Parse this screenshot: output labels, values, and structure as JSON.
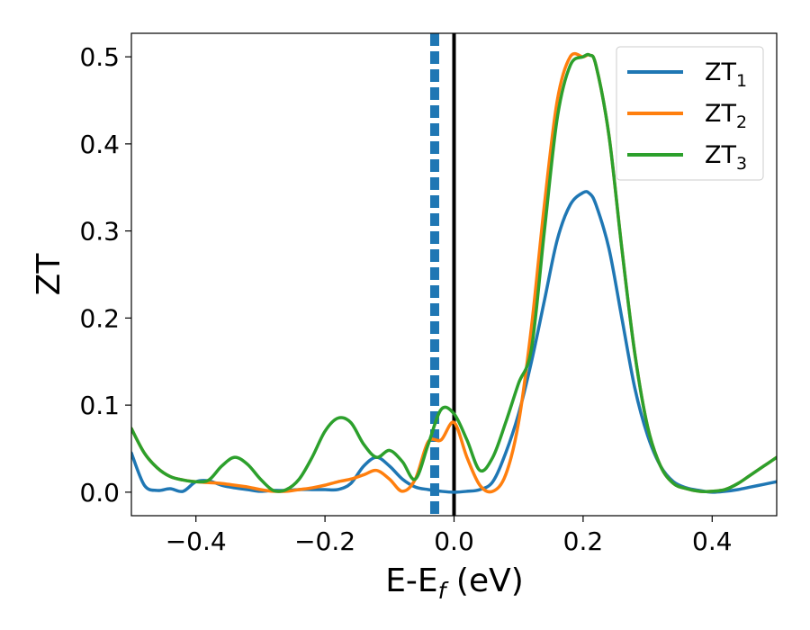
{
  "chart_data": {
    "type": "line",
    "title": "",
    "xlabel": "E-E",
    "xlabel_sub": "f",
    "xlabel_unit": " (eV)",
    "ylabel": "ZT",
    "xlim": [
      -0.5,
      0.5
    ],
    "ylim": [
      -0.027,
      0.527
    ],
    "xticks": [
      -0.4,
      -0.2,
      0.0,
      0.2,
      0.4
    ],
    "xtick_labels": [
      "−0.4",
      "−0.2",
      "0.0",
      "0.2",
      "0.4"
    ],
    "yticks": [
      0.0,
      0.1,
      0.2,
      0.3,
      0.4,
      0.5
    ],
    "ytick_labels": [
      "0.0",
      "0.1",
      "0.2",
      "0.3",
      "0.4",
      "0.5"
    ],
    "grid": false,
    "legend_position": "top-right",
    "vlines": [
      {
        "x": -0.03,
        "style": "dashed",
        "color": "#1f77b4"
      },
      {
        "x": 0.0,
        "style": "solid",
        "color": "#000000"
      }
    ],
    "series": [
      {
        "name": "ZT",
        "name_sub": "1",
        "color": "#1f77b4",
        "x": [
          -0.5,
          -0.48,
          -0.46,
          -0.44,
          -0.42,
          -0.4,
          -0.38,
          -0.36,
          -0.34,
          -0.32,
          -0.3,
          -0.28,
          -0.26,
          -0.24,
          -0.22,
          -0.2,
          -0.18,
          -0.16,
          -0.14,
          -0.12,
          -0.1,
          -0.08,
          -0.06,
          -0.04,
          -0.02,
          0.0,
          0.02,
          0.04,
          0.06,
          0.08,
          0.1,
          0.12,
          0.14,
          0.16,
          0.18,
          0.2,
          0.21,
          0.22,
          0.24,
          0.26,
          0.28,
          0.3,
          0.32,
          0.34,
          0.36,
          0.38,
          0.4,
          0.42,
          0.44,
          0.46,
          0.48,
          0.5
        ],
        "y": [
          0.045,
          0.008,
          0.002,
          0.004,
          0.001,
          0.012,
          0.013,
          0.008,
          0.005,
          0.003,
          0.001,
          0.002,
          0.002,
          0.003,
          0.003,
          0.003,
          0.003,
          0.01,
          0.03,
          0.04,
          0.03,
          0.015,
          0.006,
          0.003,
          0.001,
          0.0,
          0.001,
          0.003,
          0.012,
          0.045,
          0.09,
          0.15,
          0.22,
          0.29,
          0.33,
          0.344,
          0.343,
          0.33,
          0.28,
          0.2,
          0.12,
          0.065,
          0.03,
          0.012,
          0.005,
          0.002,
          0.0,
          0.001,
          0.003,
          0.006,
          0.009,
          0.012
        ]
      },
      {
        "name": "ZT",
        "name_sub": "2",
        "color": "#ff7f0e",
        "x": [
          -0.5,
          -0.48,
          -0.46,
          -0.44,
          -0.42,
          -0.4,
          -0.38,
          -0.36,
          -0.34,
          -0.32,
          -0.3,
          -0.28,
          -0.26,
          -0.24,
          -0.22,
          -0.2,
          -0.18,
          -0.16,
          -0.14,
          -0.12,
          -0.1,
          -0.08,
          -0.06,
          -0.04,
          -0.02,
          0.0,
          0.02,
          0.04,
          0.06,
          0.08,
          0.1,
          0.12,
          0.14,
          0.16,
          0.18,
          0.2,
          0.21,
          0.22,
          0.24,
          0.26,
          0.28,
          0.3,
          0.32,
          0.34,
          0.36,
          0.38,
          0.4,
          0.42,
          0.44,
          0.46,
          0.48,
          0.5
        ],
        "y": [
          0.073,
          0.045,
          0.028,
          0.018,
          0.014,
          0.012,
          0.011,
          0.01,
          0.008,
          0.006,
          0.003,
          0.001,
          0.001,
          0.003,
          0.005,
          0.008,
          0.012,
          0.015,
          0.02,
          0.025,
          0.015,
          0.001,
          0.015,
          0.058,
          0.06,
          0.08,
          0.04,
          0.008,
          0.001,
          0.02,
          0.08,
          0.19,
          0.33,
          0.45,
          0.5,
          0.5,
          0.502,
          0.49,
          0.41,
          0.28,
          0.16,
          0.075,
          0.03,
          0.01,
          0.004,
          0.001,
          0.001,
          0.003,
          0.01,
          0.02,
          0.03,
          0.04
        ]
      },
      {
        "name": "ZT",
        "name_sub": "3",
        "color": "#2ca02c",
        "x": [
          -0.5,
          -0.48,
          -0.46,
          -0.44,
          -0.42,
          -0.4,
          -0.38,
          -0.36,
          -0.34,
          -0.32,
          -0.3,
          -0.28,
          -0.26,
          -0.24,
          -0.22,
          -0.2,
          -0.18,
          -0.16,
          -0.14,
          -0.12,
          -0.1,
          -0.08,
          -0.06,
          -0.04,
          -0.02,
          0.0,
          0.02,
          0.04,
          0.06,
          0.08,
          0.1,
          0.12,
          0.14,
          0.16,
          0.18,
          0.2,
          0.21,
          0.22,
          0.24,
          0.26,
          0.28,
          0.3,
          0.32,
          0.34,
          0.36,
          0.38,
          0.4,
          0.42,
          0.44,
          0.46,
          0.48,
          0.5
        ],
        "y": [
          0.073,
          0.045,
          0.028,
          0.018,
          0.014,
          0.012,
          0.014,
          0.03,
          0.04,
          0.032,
          0.015,
          0.002,
          0.003,
          0.015,
          0.04,
          0.07,
          0.085,
          0.08,
          0.055,
          0.04,
          0.048,
          0.035,
          0.015,
          0.055,
          0.095,
          0.09,
          0.06,
          0.025,
          0.04,
          0.08,
          0.125,
          0.165,
          0.3,
          0.43,
          0.49,
          0.5,
          0.502,
          0.49,
          0.41,
          0.28,
          0.16,
          0.075,
          0.03,
          0.01,
          0.004,
          0.001,
          0.001,
          0.003,
          0.01,
          0.02,
          0.03,
          0.04
        ]
      }
    ]
  }
}
